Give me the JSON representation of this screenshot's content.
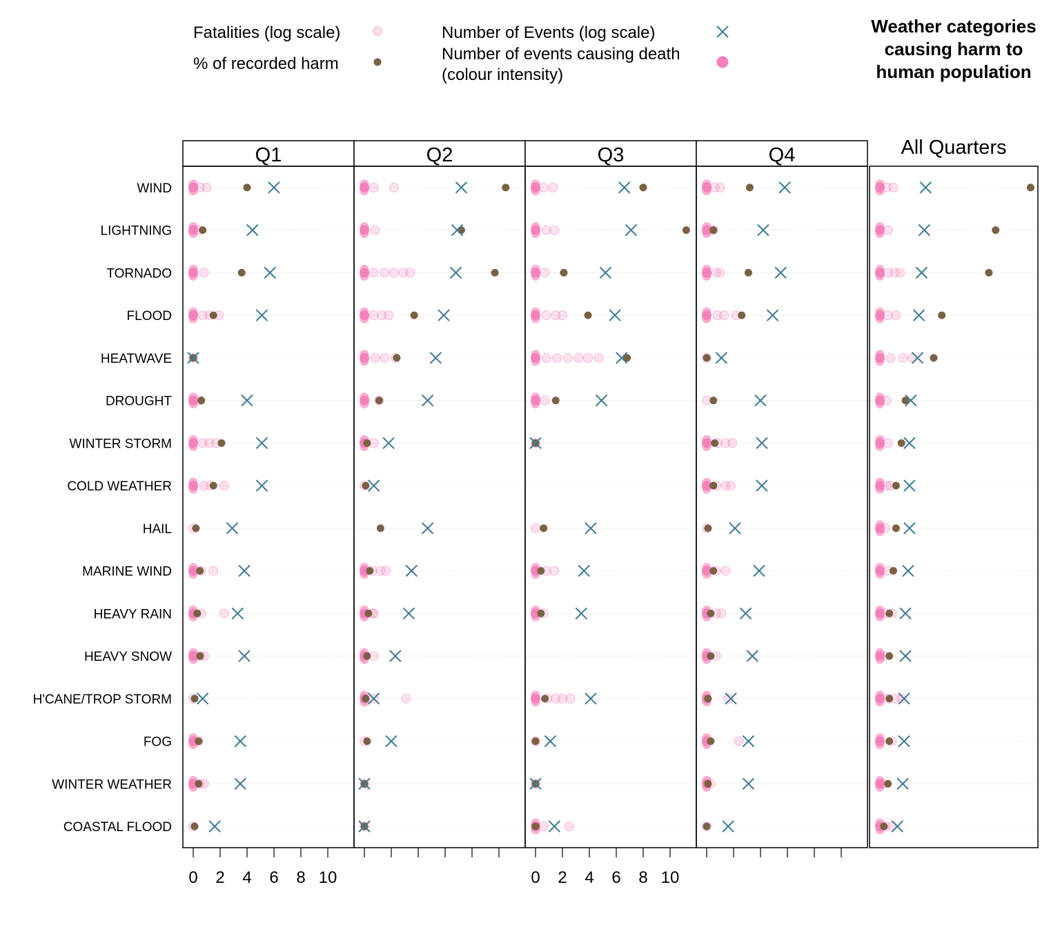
{
  "title_lines": [
    "Weather categories",
    "causing harm to",
    "human population"
  ],
  "legend": [
    {
      "label": "Fatalities (log scale)",
      "symbol": "fatality"
    },
    {
      "label": "% of recorded harm",
      "symbol": "percent"
    },
    {
      "label": "Number of Events (log scale)",
      "symbol": "events"
    },
    {
      "label": "Number of events causing death",
      "label2": "(colour intensity)",
      "symbol": "intensity"
    }
  ],
  "colors": {
    "fatality": "#f57ab7",
    "percent": "#7a6142",
    "events": "#3e7c98",
    "grid": "#e3e3e3"
  },
  "chart_data": {
    "type": "scatter",
    "panels": [
      "Q1",
      "Q2",
      "Q3",
      "Q4",
      "All Quarters"
    ],
    "categories": [
      "WIND",
      "LIGHTNING",
      "TORNADO",
      "FLOOD",
      "HEATWAVE",
      "DROUGHT",
      "WINTER STORM",
      "COLD WEATHER",
      "HAIL",
      "MARINE WIND",
      "HEAVY RAIN",
      "HEAVY SNOW",
      "H'CANE/TROP STORM",
      "FOG",
      "WINTER WEATHER",
      "COASTAL FLOOD"
    ],
    "x_ticks": [
      0,
      2,
      4,
      6,
      8,
      10
    ],
    "xlim": [
      -0.7,
      11.8
    ],
    "series": [
      {
        "name": "Number of Events (log scale)",
        "marker": "x",
        "values": {
          "Q1": [
            6.0,
            4.4,
            5.7,
            5.1,
            0.0,
            4.0,
            5.1,
            5.1,
            2.9,
            3.8,
            3.3,
            3.8,
            0.7,
            3.5,
            3.5,
            1.6
          ],
          "Q2": [
            7.2,
            6.9,
            6.8,
            5.9,
            5.3,
            4.7,
            1.8,
            0.7,
            4.7,
            3.5,
            3.3,
            2.3,
            0.7,
            2.0,
            0.0,
            0.0
          ],
          "Q3": [
            6.6,
            7.1,
            5.2,
            5.9,
            6.4,
            4.9,
            0.0,
            null,
            4.1,
            3.6,
            3.4,
            null,
            4.1,
            1.1,
            0.0,
            1.4
          ],
          "Q4": [
            5.8,
            4.2,
            5.5,
            4.9,
            1.1,
            4.0,
            4.1,
            4.1,
            2.1,
            3.9,
            2.9,
            3.4,
            1.8,
            3.1,
            3.1,
            1.6
          ],
          "All Quarters": [
            3.4,
            3.3,
            3.1,
            2.9,
            2.8,
            2.3,
            2.2,
            2.2,
            2.2,
            2.1,
            1.9,
            1.9,
            1.8,
            1.8,
            1.7,
            1.3
          ]
        }
      },
      {
        "name": "% of recorded harm",
        "marker": "dot",
        "values": {
          "Q1": [
            4.0,
            0.7,
            3.6,
            1.5,
            0.0,
            0.6,
            2.1,
            1.5,
            0.2,
            0.5,
            0.3,
            0.5,
            0.1,
            0.4,
            0.4,
            0.1
          ],
          "Q2": [
            10.5,
            7.2,
            9.7,
            3.7,
            2.4,
            1.1,
            0.2,
            0.1,
            1.2,
            0.4,
            0.3,
            0.2,
            0.1,
            0.2,
            0.0,
            0.0
          ],
          "Q3": [
            8.0,
            11.2,
            2.1,
            3.9,
            6.8,
            1.5,
            0.0,
            null,
            0.6,
            0.4,
            0.4,
            null,
            0.7,
            0.0,
            0.0,
            0.0
          ],
          "Q4": [
            3.2,
            0.5,
            3.1,
            2.6,
            0.0,
            0.5,
            0.6,
            0.5,
            0.1,
            0.5,
            0.3,
            0.3,
            0.1,
            0.3,
            0.1,
            0.0
          ],
          "All Quarters": [
            11.2,
            8.6,
            8.1,
            4.6,
            4.0,
            1.9,
            1.6,
            1.2,
            1.2,
            1.0,
            0.7,
            0.7,
            0.7,
            0.7,
            0.6,
            0.3
          ]
        }
      },
      {
        "name": "Fatalities (log scale)",
        "marker": "circle",
        "values": {
          "Q1": [
            [
              0,
              0.5,
              1.0
            ],
            [
              0,
              0.4
            ],
            [
              0,
              0.8
            ],
            [
              0,
              0.7,
              1.2,
              1.9
            ],
            [
              0
            ],
            [
              0,
              0.5
            ],
            [
              0,
              0.7,
              1.2,
              1.7
            ],
            [
              0,
              0.8,
              1.3,
              2.3
            ],
            [
              0
            ],
            [
              0,
              0.6,
              1.5
            ],
            [
              0,
              0.6,
              2.3
            ],
            [
              0,
              0.5,
              0.8
            ],
            [
              0
            ],
            [
              0,
              0.4
            ],
            [
              0,
              0.5,
              0.8
            ],
            [
              0
            ]
          ],
          "Q2": [
            [
              0,
              0.7,
              2.2
            ],
            [
              0,
              0.8
            ],
            [
              0,
              0.7,
              1.5,
              2.2,
              2.9,
              3.4
            ],
            [
              0,
              0.7,
              1.3,
              1.8
            ],
            [
              0,
              0.8,
              1.5,
              2.3
            ],
            [
              0,
              1.1
            ],
            [
              0,
              0.7
            ],
            [
              0
            ],
            [],
            [
              0,
              0.6,
              1.2,
              1.6
            ],
            [
              0,
              0.6,
              0.7
            ],
            [
              0,
              0.7
            ],
            [
              0,
              0.7,
              3.1
            ],
            [
              0
            ],
            [
              0
            ],
            [
              0
            ]
          ],
          "Q3": [
            [
              0,
              0.6,
              1.3
            ],
            [
              0,
              0.8,
              1.4
            ],
            [
              0,
              0.7
            ],
            [
              0,
              0.8,
              1.5,
              2.0
            ],
            [
              0,
              0.8,
              1.6,
              2.4,
              3.2,
              3.9,
              4.7
            ],
            [
              0,
              0.7
            ],
            [
              0
            ],
            [],
            [
              0
            ],
            [
              0,
              0.8,
              1.4
            ],
            [
              0,
              0.6
            ],
            [],
            [
              0,
              0.9,
              1.5,
              2.0,
              2.6
            ],
            [
              0
            ],
            [
              0
            ],
            [
              0,
              0.6,
              2.5
            ]
          ],
          "Q4": [
            [
              0,
              0.6,
              1.0
            ],
            [
              0,
              0.5
            ],
            [
              0,
              0.7,
              1.0
            ],
            [
              0,
              0.8,
              1.3,
              2.2
            ],
            [
              0
            ],
            [
              0
            ],
            [
              0,
              0.8,
              1.4,
              1.9
            ],
            [
              0,
              0.7,
              1.4,
              1.8
            ],
            [
              0
            ],
            [
              0,
              0.7,
              1.4
            ],
            [
              0,
              0.7,
              1.1
            ],
            [
              0,
              0.7
            ],
            [
              0,
              1.6
            ],
            [
              0,
              2.4
            ],
            [
              0,
              0.3
            ],
            [
              0
            ]
          ],
          "All Quarters": [
            [
              0,
              0.5,
              1.0
            ],
            [
              0,
              0.6
            ],
            [
              0,
              0.6,
              1.1,
              1.5
            ],
            [
              0,
              0.6,
              1.2
            ],
            [
              0,
              0.8,
              1.7,
              2.4
            ],
            [
              0,
              0.5
            ],
            [
              0,
              0.6
            ],
            [
              0,
              0.5,
              0.8
            ],
            [
              0,
              0.4
            ],
            [
              0,
              0.6
            ],
            [
              0,
              0.4,
              0.9
            ],
            [
              0,
              0.4
            ],
            [
              0,
              0.6,
              1.1,
              1.6
            ],
            [
              0,
              0.9
            ],
            [
              0,
              0.3
            ],
            [
              0,
              0.4,
              0.9
            ]
          ]
        }
      }
    ]
  }
}
